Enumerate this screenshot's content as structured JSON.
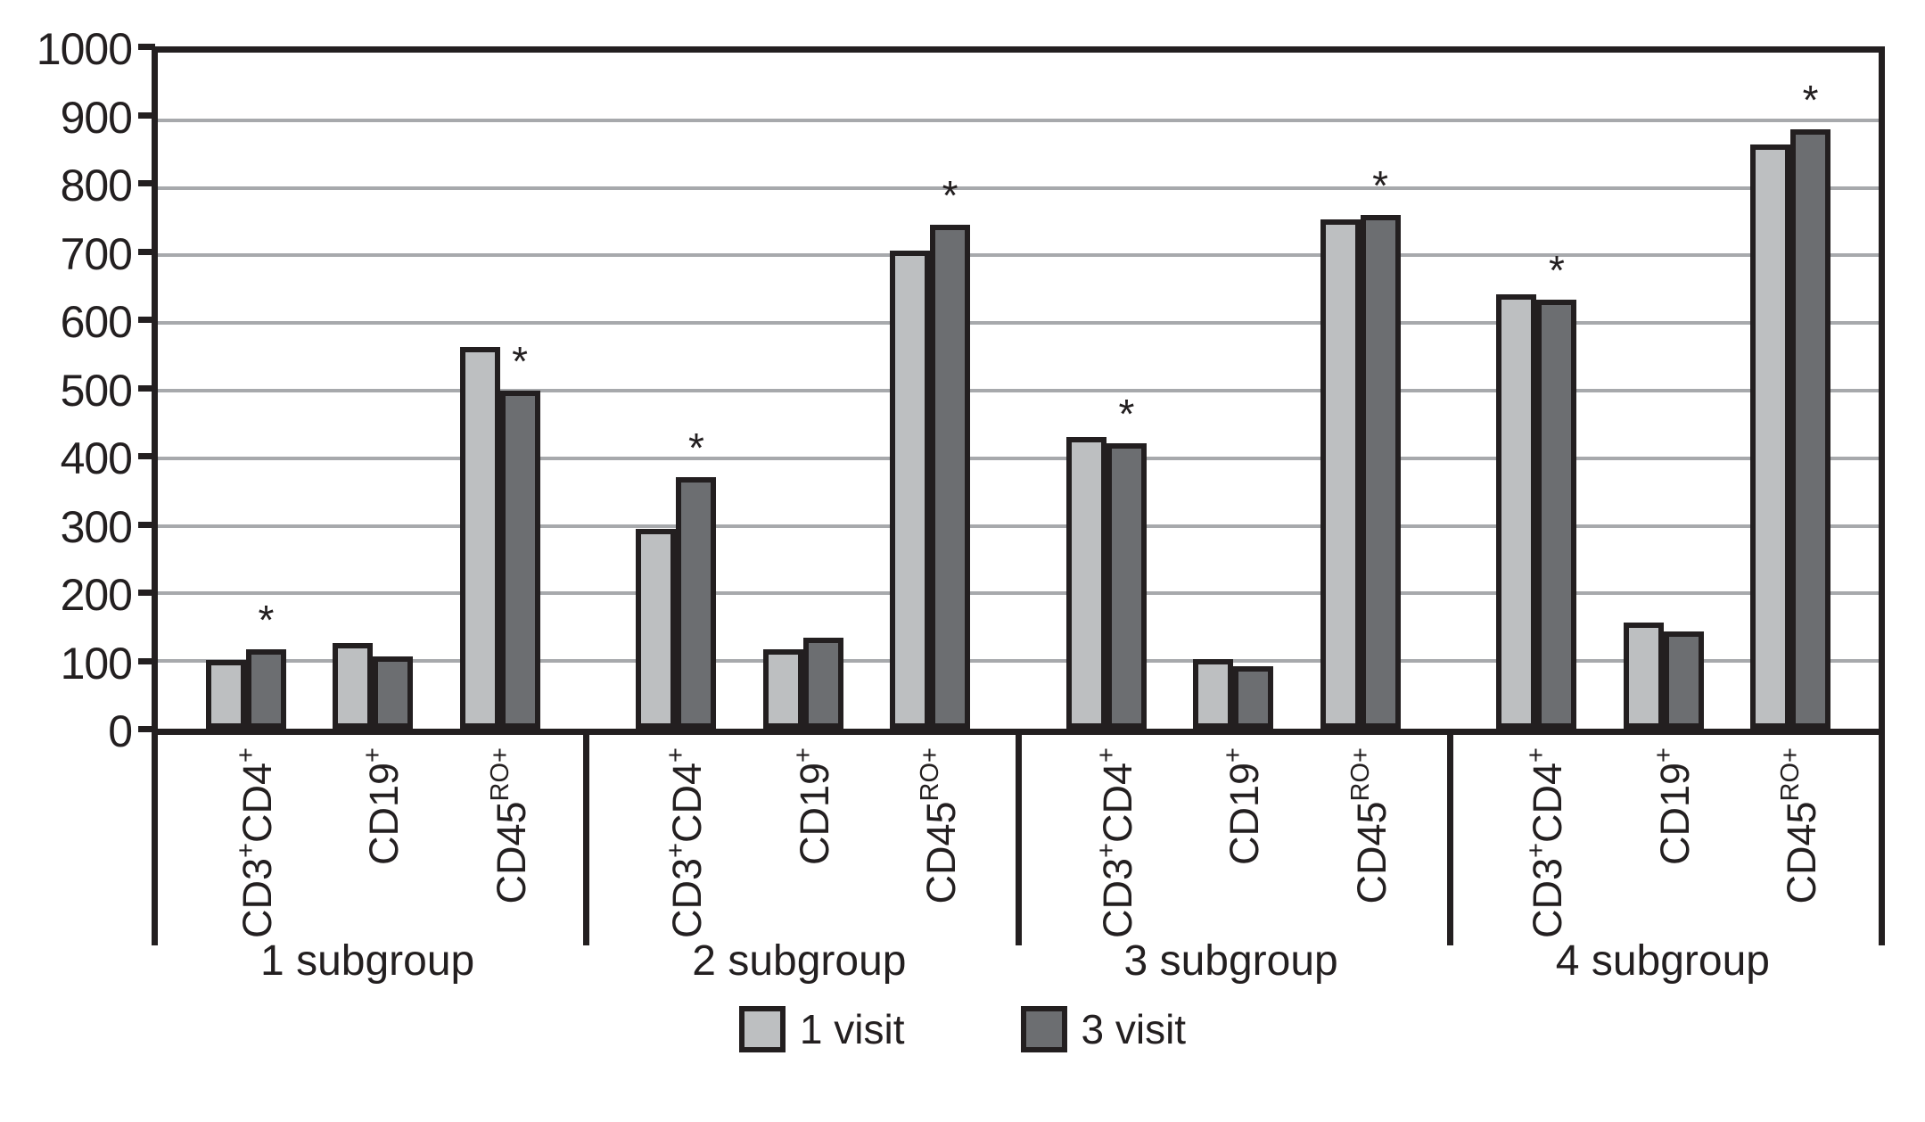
{
  "figure": {
    "background": "#ffffff",
    "title": ""
  },
  "colors": {
    "series_1_fill": "#bdbfc1",
    "series_2_fill": "#6c6e71",
    "gridline": "#a7a9ac",
    "axis": "#231f20",
    "text": "#231f20"
  },
  "annotation": {
    "significance_symbol": "*"
  },
  "legend": {
    "items": [
      {
        "label": "1 visit",
        "color_key": "series_1_fill"
      },
      {
        "label": "3 visit",
        "color_key": "series_2_fill"
      }
    ]
  },
  "chart_data": {
    "type": "bar",
    "title": "",
    "xlabel": "",
    "ylabel": "",
    "ylim": [
      0,
      1000
    ],
    "ytick_step": 100,
    "yticks": [
      0,
      100,
      200,
      300,
      400,
      500,
      600,
      700,
      800,
      900,
      1000
    ],
    "grid": "horizontal-gray-lines",
    "legend_position": "bottom-center",
    "series_names": [
      "1 visit",
      "3 visit"
    ],
    "categories": [
      "CD3+CD4+",
      "CD19+",
      "CD45RO+"
    ],
    "category_parts": {
      "CD3+CD4+": [
        [
          "CD3",
          0
        ],
        [
          "+",
          1
        ],
        [
          "CD4",
          0
        ],
        [
          "+",
          1
        ]
      ],
      "CD19+": [
        [
          "CD19",
          0
        ],
        [
          "+",
          1
        ]
      ],
      "CD45RO+": [
        [
          "CD45",
          0
        ],
        [
          "RO+",
          1
        ]
      ]
    },
    "star_marks_series": "3 visit",
    "groups": [
      {
        "label": "1 subgroup",
        "bars": [
          {
            "category": "CD3+CD4+",
            "values": [
              102,
              118
            ],
            "star": true
          },
          {
            "category": "CD19+",
            "values": [
              126,
              107
            ],
            "star": false
          },
          {
            "category": "CD45RO+",
            "values": [
              564,
              500
            ],
            "star": true
          }
        ]
      },
      {
        "label": "2 subgroup",
        "bars": [
          {
            "category": "CD3+CD4+",
            "values": [
              295,
              372
            ],
            "star": true
          },
          {
            "category": "CD19+",
            "values": [
              117,
              135
            ],
            "star": false
          },
          {
            "category": "CD45RO+",
            "values": [
              707,
              745
            ],
            "star": true
          }
        ]
      },
      {
        "label": "3 subgroup",
        "bars": [
          {
            "category": "CD3+CD4+",
            "values": [
              432,
              422
            ],
            "star": true
          },
          {
            "category": "CD19+",
            "values": [
              103,
              93
            ],
            "star": false
          },
          {
            "category": "CD45RO+",
            "values": [
              753,
              760
            ],
            "star": true
          }
        ]
      },
      {
        "label": "4 subgroup",
        "bars": [
          {
            "category": "CD3+CD4+",
            "values": [
              642,
              634
            ],
            "star": true
          },
          {
            "category": "CD19+",
            "values": [
              157,
              144
            ],
            "star": false
          },
          {
            "category": "CD45RO+",
            "values": [
              864,
              886
            ],
            "star": true
          }
        ]
      }
    ]
  }
}
